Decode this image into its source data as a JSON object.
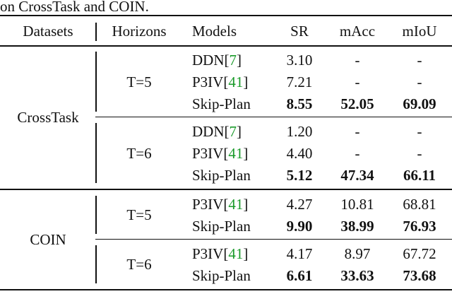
{
  "caption_fragment": "on CrossTask and COIN.",
  "table": {
    "header": [
      "Datasets",
      "Horizons",
      "Models",
      "SR",
      "mAcc",
      "mIoU"
    ],
    "groups": [
      {
        "dataset": "CrossTask",
        "horizons": [
          {
            "label": "T=5",
            "rows": [
              {
                "model": "DDN",
                "ref": "7",
                "cells": [
                  "3.10",
                  "-",
                  "-"
                ],
                "bold": false
              },
              {
                "model": "P3IV",
                "ref": "41",
                "cells": [
                  "7.21",
                  "-",
                  "-"
                ],
                "bold": false
              },
              {
                "model": "Skip-Plan",
                "ref": null,
                "cells": [
                  "8.55",
                  "52.05",
                  "69.09"
                ],
                "bold": true
              }
            ]
          },
          {
            "label": "T=6",
            "rows": [
              {
                "model": "DDN",
                "ref": "7",
                "cells": [
                  "1.20",
                  "-",
                  "-"
                ],
                "bold": false
              },
              {
                "model": "P3IV",
                "ref": "41",
                "cells": [
                  "4.40",
                  "-",
                  "-"
                ],
                "bold": false
              },
              {
                "model": "Skip-Plan",
                "ref": null,
                "cells": [
                  "5.12",
                  "47.34",
                  "66.11"
                ],
                "bold": true
              }
            ]
          }
        ]
      },
      {
        "dataset": "COIN",
        "horizons": [
          {
            "label": "T=5",
            "rows": [
              {
                "model": "P3IV",
                "ref": "41",
                "cells": [
                  "4.27",
                  "10.81",
                  "68.81"
                ],
                "bold": false
              },
              {
                "model": "Skip-Plan",
                "ref": null,
                "cells": [
                  "9.90",
                  "38.99",
                  "76.93"
                ],
                "bold": true
              }
            ]
          },
          {
            "label": "T=6",
            "rows": [
              {
                "model": "P3IV",
                "ref": "41",
                "cells": [
                  "4.17",
                  "8.97",
                  "67.72"
                ],
                "bold": false
              },
              {
                "model": "Skip-Plan",
                "ref": null,
                "cells": [
                  "6.61",
                  "33.63",
                  "73.68"
                ],
                "bold": true
              }
            ]
          }
        ]
      }
    ]
  }
}
